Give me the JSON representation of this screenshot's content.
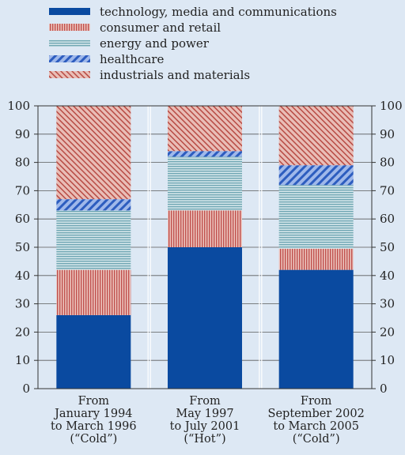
{
  "chart_data": {
    "type": "bar",
    "stacked": true,
    "title": "",
    "xlabel": "",
    "ylabel": "",
    "ylim": [
      0,
      100
    ],
    "yticks": [
      0,
      10,
      20,
      30,
      40,
      50,
      60,
      70,
      80,
      90,
      100
    ],
    "grid": true,
    "legend_position": "top-left",
    "categories": [
      [
        "From",
        "January 1994",
        "to March 1996",
        "(“Cold”)"
      ],
      [
        "From",
        "May 1997",
        "to July 2001",
        "(“Hot”)"
      ],
      [
        "From",
        "September 2002",
        "to March 2005",
        "(“Cold”)"
      ]
    ],
    "series": [
      {
        "name": "technology, media and communications",
        "values": [
          26,
          50,
          42
        ],
        "color": "#0a4aa0",
        "pattern": "solid"
      },
      {
        "name": "consumer and retail",
        "values": [
          16,
          13,
          7.5
        ],
        "color": "#d88a84",
        "pattern": "vertical-lines"
      },
      {
        "name": "energy and power",
        "values": [
          21,
          19,
          22.5
        ],
        "color": "#9ec7cf",
        "pattern": "horizontal-lines"
      },
      {
        "name": "healthcare",
        "values": [
          4,
          2,
          7
        ],
        "color": "#6c8fd4",
        "pattern": "diagonal-lines"
      },
      {
        "name": "industrials and materials",
        "values": [
          33,
          16,
          21
        ],
        "color": "#dca09a",
        "pattern": "diagonal-lines"
      }
    ]
  }
}
